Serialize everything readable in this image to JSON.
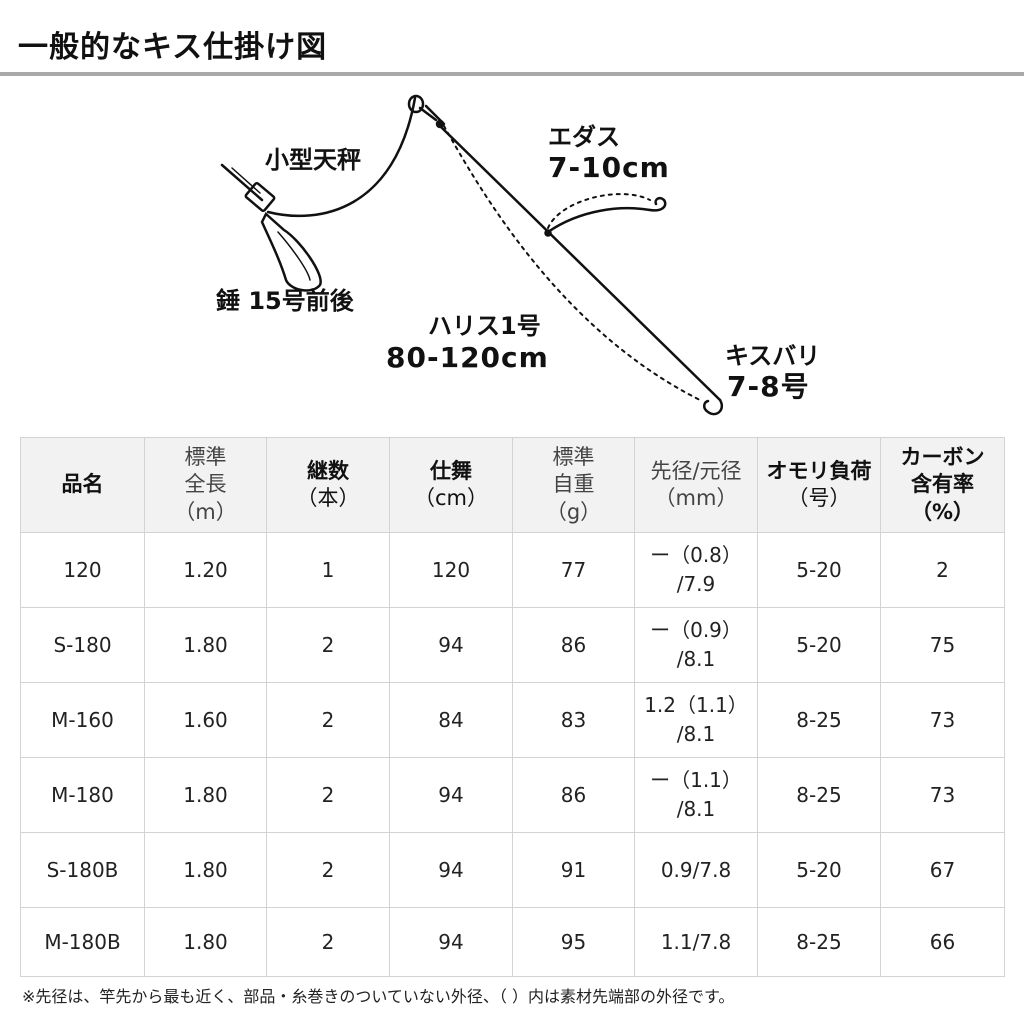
{
  "title": "一般的なキス仕掛け図",
  "diagram": {
    "labels": {
      "tenbin": "小型天秤",
      "sinker": "錘 15号前後",
      "edasu_name": "エダス",
      "edasu_len": "7-10cm",
      "harisu_name": "ハリス1号",
      "harisu_len": "80-120cm",
      "hook_name": "キスバリ",
      "hook_size": "7-8号"
    }
  },
  "table": {
    "headers": [
      {
        "lines": [
          "標準",
          "全長",
          "（m）"
        ],
        "bold": false
      },
      {
        "lines": [
          "継数",
          "（本）"
        ],
        "bold": true
      },
      {
        "lines": [
          "仕舞",
          "（cm）"
        ],
        "bold": true
      },
      {
        "lines": [
          "標準",
          "自重",
          "（g）"
        ],
        "bold": false
      },
      {
        "lines": [
          "先径/元径",
          "（mm）"
        ],
        "bold": false
      },
      {
        "lines": [
          "オモリ負荷",
          "（号）"
        ],
        "bold": true
      },
      {
        "lines": [
          "カーボン",
          "含有率",
          "（%）"
        ],
        "bold": true
      }
    ],
    "first_header": "品名",
    "rows": [
      {
        "name": "120",
        "length": "1.20",
        "pieces": "1",
        "closed": "120",
        "weight": "77",
        "dia1": "ー（0.8）",
        "dia2": "/7.9",
        "sinker": "5-20",
        "carbon": "2"
      },
      {
        "name": "S-180",
        "length": "1.80",
        "pieces": "2",
        "closed": "94",
        "weight": "86",
        "dia1": "ー（0.9）",
        "dia2": "/8.1",
        "sinker": "5-20",
        "carbon": "75"
      },
      {
        "name": "M-160",
        "length": "1.60",
        "pieces": "2",
        "closed": "84",
        "weight": "83",
        "dia1": "1.2（1.1）",
        "dia2": "/8.1",
        "sinker": "8-25",
        "carbon": "73"
      },
      {
        "name": "M-180",
        "length": "1.80",
        "pieces": "2",
        "closed": "94",
        "weight": "86",
        "dia1": "ー（1.1）",
        "dia2": "/8.1",
        "sinker": "8-25",
        "carbon": "73"
      },
      {
        "name": "S-180B",
        "length": "1.80",
        "pieces": "2",
        "closed": "94",
        "weight": "91",
        "dia1": "0.9/7.8",
        "dia2": "",
        "sinker": "5-20",
        "carbon": "67"
      },
      {
        "name": "M-180B",
        "length": "1.80",
        "pieces": "2",
        "closed": "94",
        "weight": "95",
        "dia1": "1.1/7.8",
        "dia2": "",
        "sinker": "8-25",
        "carbon": "66"
      }
    ]
  },
  "note": "※先径は、竿先から最も近く、部品・糸巻きのついていない外径、（ ）内は素材先端部の外径です。"
}
